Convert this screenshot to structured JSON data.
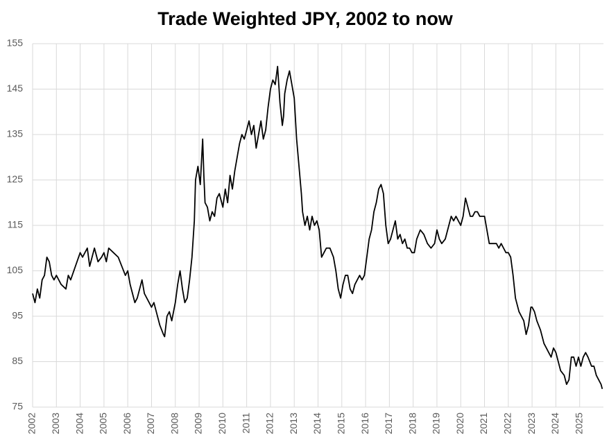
{
  "chart_data": {
    "type": "line",
    "title": "Trade Weighted JPY, 2002 to now",
    "x": [
      2002.0,
      2002.1,
      2002.2,
      2002.3,
      2002.4,
      2002.5,
      2002.6,
      2002.7,
      2002.8,
      2002.9,
      2003.0,
      2003.2,
      2003.4,
      2003.5,
      2003.6,
      2003.8,
      2004.0,
      2004.1,
      2004.3,
      2004.4,
      2004.6,
      2004.75,
      2004.9,
      2005.0,
      2005.1,
      2005.2,
      2005.4,
      2005.6,
      2005.75,
      2005.9,
      2006.0,
      2006.1,
      2006.3,
      2006.4,
      2006.5,
      2006.6,
      2006.7,
      2006.9,
      2007.0,
      2007.1,
      2007.2,
      2007.35,
      2007.5,
      2007.55,
      2007.65,
      2007.75,
      2007.85,
      2008.0,
      2008.1,
      2008.2,
      2008.3,
      2008.4,
      2008.5,
      2008.6,
      2008.7,
      2008.8,
      2008.85,
      2008.95,
      2009.05,
      2009.1,
      2009.15,
      2009.2,
      2009.25,
      2009.35,
      2009.45,
      2009.55,
      2009.65,
      2009.75,
      2009.85,
      2009.95,
      2010.0,
      2010.1,
      2010.2,
      2010.3,
      2010.4,
      2010.5,
      2010.6,
      2010.7,
      2010.8,
      2010.9,
      2011.0,
      2011.1,
      2011.2,
      2011.3,
      2011.4,
      2011.5,
      2011.6,
      2011.7,
      2011.8,
      2011.9,
      2012.0,
      2012.1,
      2012.2,
      2012.3,
      2012.4,
      2012.5,
      2012.55,
      2012.6,
      2012.7,
      2012.8,
      2012.9,
      2013.0,
      2013.1,
      2013.2,
      2013.3,
      2013.35,
      2013.45,
      2013.55,
      2013.65,
      2013.75,
      2013.85,
      2013.95,
      2014.05,
      2014.15,
      2014.25,
      2014.35,
      2014.5,
      2014.65,
      2014.75,
      2014.85,
      2014.95,
      2015.05,
      2015.15,
      2015.25,
      2015.35,
      2015.45,
      2015.55,
      2015.65,
      2015.75,
      2015.85,
      2015.95,
      2016.05,
      2016.15,
      2016.25,
      2016.35,
      2016.45,
      2016.55,
      2016.65,
      2016.75,
      2016.85,
      2016.95,
      2017.05,
      2017.15,
      2017.25,
      2017.35,
      2017.45,
      2017.55,
      2017.65,
      2017.75,
      2017.85,
      2017.95,
      2018.05,
      2018.15,
      2018.3,
      2018.45,
      2018.6,
      2018.75,
      2018.9,
      2019.0,
      2019.1,
      2019.2,
      2019.35,
      2019.5,
      2019.6,
      2019.7,
      2019.8,
      2019.9,
      2020.0,
      2020.1,
      2020.2,
      2020.3,
      2020.4,
      2020.5,
      2020.6,
      2020.7,
      2020.8,
      2020.9,
      2021.0,
      2021.1,
      2021.2,
      2021.35,
      2021.5,
      2021.6,
      2021.7,
      2021.8,
      2021.9,
      2022.0,
      2022.1,
      2022.2,
      2022.3,
      2022.45,
      2022.55,
      2022.65,
      2022.75,
      2022.85,
      2022.95,
      2023.0,
      2023.1,
      2023.2,
      2023.35,
      2023.5,
      2023.6,
      2023.7,
      2023.8,
      2023.9,
      2024.0,
      2024.1,
      2024.2,
      2024.35,
      2024.45,
      2024.55,
      2024.65,
      2024.75,
      2024.85,
      2024.95,
      2025.05,
      2025.15,
      2025.25,
      2025.35,
      2025.5,
      2025.6,
      2025.7,
      2025.8,
      2025.9,
      2025.95
    ],
    "values": [
      100,
      98,
      101,
      99,
      103,
      104,
      108,
      107,
      104,
      103,
      104,
      102,
      101,
      104,
      103,
      106,
      109,
      108,
      110,
      106,
      110,
      107,
      108,
      109,
      107,
      110,
      109,
      108,
      106,
      104,
      105,
      102,
      98,
      99,
      101,
      103,
      100,
      98,
      97,
      98,
      96,
      93,
      91,
      90.5,
      95,
      96,
      94,
      98,
      102,
      105,
      101,
      98,
      99,
      103,
      108,
      116,
      125,
      128,
      124,
      129,
      134,
      126,
      120,
      119,
      116,
      118,
      117,
      121,
      122,
      120,
      119,
      123,
      120,
      126,
      123,
      127,
      130,
      133,
      135,
      134,
      136,
      138,
      135,
      137,
      132,
      135,
      138,
      134,
      136,
      141,
      145,
      147,
      146,
      150,
      142,
      137,
      139,
      144,
      147,
      149,
      146,
      143,
      134,
      128,
      122,
      118,
      115,
      117,
      114,
      117,
      115,
      116,
      114,
      108,
      109,
      110,
      110,
      108,
      105,
      101,
      99,
      102,
      104,
      104,
      101,
      100,
      102,
      103,
      104,
      103,
      104,
      108,
      112,
      114,
      118,
      120,
      123,
      124,
      122,
      115,
      111,
      112,
      114,
      116,
      112,
      113,
      111,
      112,
      110,
      110,
      109,
      109,
      112,
      114,
      113,
      111,
      110,
      111,
      114,
      112,
      111,
      112,
      115,
      117,
      116,
      117,
      116,
      115,
      117,
      121,
      119,
      117,
      117,
      118,
      118,
      117,
      117,
      117,
      114,
      111,
      111,
      111,
      110,
      111,
      110,
      109,
      109,
      108,
      104,
      99,
      96,
      95,
      94,
      91,
      93,
      97,
      97,
      96,
      94,
      92,
      89,
      88,
      87,
      86,
      88,
      87,
      85,
      83,
      82,
      80,
      81,
      86,
      86,
      84,
      86,
      84,
      86,
      87,
      86,
      84,
      84,
      82,
      81,
      80,
      79
    ],
    "color": "#000000",
    "xlim": [
      2002,
      2026
    ],
    "xticks": [
      2002,
      2003,
      2004,
      2005,
      2006,
      2007,
      2008,
      2009,
      2010,
      2011,
      2012,
      2013,
      2014,
      2015,
      2016,
      2017,
      2018,
      2019,
      2020,
      2021,
      2022,
      2023,
      2024,
      2025
    ],
    "ylim": [
      75,
      155
    ],
    "yticks": [
      75,
      85,
      95,
      105,
      115,
      125,
      135,
      145,
      155
    ],
    "grid": true
  }
}
